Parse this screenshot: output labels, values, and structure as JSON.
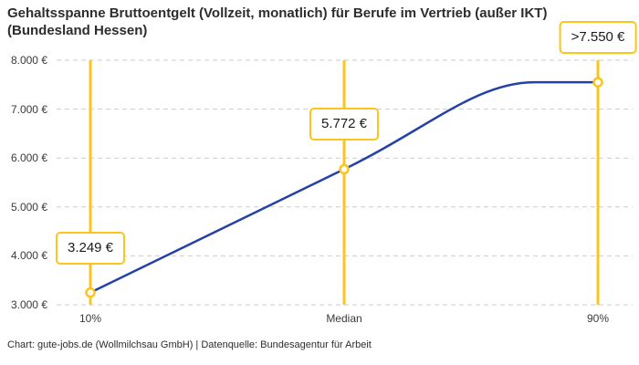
{
  "header": {
    "title_lines": [
      "Gehaltsspanne Bruttoentgelt (Vollzeit, monatlich) für Berufe im Vertrieb (außer IKT)",
      "(Bundesland Hessen)"
    ]
  },
  "footer": {
    "credit": "Chart: gute-jobs.de (Wollmilchsau GmbH) | Datenquelle: Bundesagentur für Arbeit"
  },
  "chart_data": {
    "type": "line",
    "title": "Gehaltsspanne Bruttoentgelt (Vollzeit, monatlich) für Berufe im Vertrieb (außer IKT) (Bundesland Hessen)",
    "categories": [
      "10%",
      "Median",
      "90%"
    ],
    "points": [
      {
        "label": "10%",
        "value": 3249,
        "display": "3.249 €"
      },
      {
        "label": "Median",
        "value": 5772,
        "display": "5.772 €"
      },
      {
        "label": "90%",
        "value": 7550,
        "display": ">7.550 €"
      }
    ],
    "yticks": [
      {
        "value": 3000,
        "label": "3.000 €"
      },
      {
        "value": 4000,
        "label": "4.000 €"
      },
      {
        "value": 5000,
        "label": "5.000 €"
      },
      {
        "value": 6000,
        "label": "6.000 €"
      },
      {
        "value": 7000,
        "label": "7.000 €"
      },
      {
        "value": 8000,
        "label": "8.000 €"
      }
    ],
    "ylim": [
      3000,
      8000
    ],
    "xlabel": "",
    "ylabel": "",
    "grid": "horizontal-dashed",
    "legend": "none",
    "colors": {
      "accent": "#FCC41C",
      "line": "#2441A8",
      "grid": "#CBCBCB",
      "title_text": "#2D2D2D",
      "axis_text": "#3A3A3A",
      "label_text": "#1B1B1B",
      "background": "#FFFFFF"
    }
  }
}
